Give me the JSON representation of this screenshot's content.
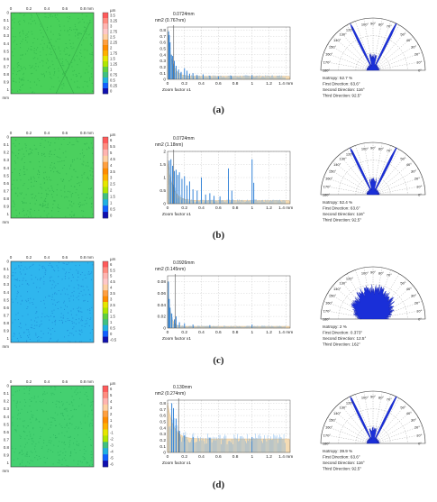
{
  "panels": [
    {
      "label": "(a)",
      "map": {
        "unit": "µm",
        "fill": "#49d15a",
        "speckle": "#2fb44a",
        "x_ticks": [
          "0",
          "0.2",
          "0.4",
          "0.6",
          "0.8",
          "mm"
        ],
        "y_ticks": [
          "0",
          "0.1",
          "0.2",
          "0.3",
          "0.4",
          "0.5",
          "0.6",
          "0.7",
          "0.8",
          "0.9",
          "1",
          "mm"
        ],
        "scale": [
          "3.5",
          "3.25",
          "3",
          "2.75",
          "2.5",
          "2.25",
          "2",
          "1.75",
          "1.5",
          "1.25",
          "1",
          "0.75",
          "0.5",
          "0.25",
          "0"
        ]
      },
      "spectrum": {
        "label1": "0.0724mm",
        "label2": "nm2 (0.767nm)",
        "yticks": [
          "0.8",
          "0.7",
          "0.6",
          "0.5",
          "0.4",
          "0.3",
          "0.2",
          "0.1",
          "0"
        ],
        "ymax": 0.85,
        "baseline": 0.05,
        "marker": 0.0724,
        "xticks": [
          "0",
          "0.2",
          "0.4",
          "0.6",
          "0.8",
          "1",
          "1.2",
          "1.4 mm"
        ],
        "zoom": "Zoom factor x1",
        "peaks": [
          [
            0.012,
            0.78
          ],
          [
            0.02,
            0.72
          ],
          [
            0.03,
            0.6
          ],
          [
            0.045,
            0.4
          ],
          [
            0.06,
            0.38
          ],
          [
            0.08,
            0.3
          ],
          [
            0.1,
            0.22
          ],
          [
            0.13,
            0.16
          ],
          [
            0.16,
            0.12
          ],
          [
            0.2,
            0.18
          ],
          [
            0.23,
            0.14
          ],
          [
            0.26,
            0.09
          ],
          [
            0.3,
            0.1
          ],
          [
            0.35,
            0.07
          ],
          [
            0.42,
            0.08
          ],
          [
            0.5,
            0.06
          ],
          [
            0.6,
            0.05
          ],
          [
            0.75,
            0.06
          ],
          [
            1.0,
            0.07
          ]
        ],
        "decay": 0.05
      },
      "rose": {
        "angle_labels": [
          "130°",
          "120°",
          "100°",
          "90°",
          "80°",
          "70°",
          "50°",
          "140°",
          "40°",
          "150°",
          "30°",
          "160°",
          "20°",
          "170°",
          "10°",
          "180°",
          "0°"
        ],
        "spread": 0.06,
        "reach": 0.98,
        "main_dir": 63.6,
        "second_dir": 116,
        "stats": [
          "Isotropy: 52.7 %",
          "First Direction: 63.6°",
          "Second Direction: 116°",
          "Third Direction: 92.5°"
        ]
      }
    },
    {
      "label": "(b)",
      "map": {
        "unit": "µm",
        "fill": "#4bd05e",
        "speckle": "#2faf4d",
        "x_ticks": [
          "0",
          "0.2",
          "0.4",
          "0.6",
          "0.8",
          "mm"
        ],
        "y_ticks": [
          "0",
          "0.1",
          "0.2",
          "0.3",
          "0.4",
          "0.5",
          "0.6",
          "0.7",
          "0.8",
          "0.9",
          "1",
          "mm"
        ],
        "scale": [
          "6",
          "5.5",
          "5",
          "4.5",
          "4",
          "3.5",
          "3",
          "2.5",
          "2",
          "1.5",
          "1",
          "0.5",
          "0"
        ]
      },
      "spectrum": {
        "label1": "0.0724mm",
        "label2": "nm2 (1.18nm)",
        "yticks": [
          "2",
          "1.5",
          "1",
          "0.5",
          "0"
        ],
        "ymax": 2.0,
        "baseline": 0.12,
        "marker": 0.0724,
        "xticks": [
          "0",
          "0.2",
          "0.4",
          "0.6",
          "0.8",
          "1",
          "1.2",
          "1.4 mm"
        ],
        "zoom": "Zoom factor x1",
        "peaks": [
          [
            0.02,
            1.65
          ],
          [
            0.04,
            1.7
          ],
          [
            0.06,
            1.45
          ],
          [
            0.08,
            1.25
          ],
          [
            0.1,
            1.3
          ],
          [
            0.12,
            1.1
          ],
          [
            0.14,
            1.2
          ],
          [
            0.17,
            0.95
          ],
          [
            0.2,
            1.05
          ],
          [
            0.23,
            0.7
          ],
          [
            0.26,
            0.85
          ],
          [
            0.3,
            0.55
          ],
          [
            0.35,
            0.5
          ],
          [
            0.4,
            1.0
          ],
          [
            0.45,
            0.35
          ],
          [
            0.5,
            0.4
          ],
          [
            0.55,
            0.3
          ],
          [
            0.62,
            0.28
          ],
          [
            0.72,
            1.35
          ],
          [
            0.76,
            0.5
          ],
          [
            1.0,
            1.7
          ],
          [
            1.02,
            0.8
          ]
        ],
        "decay": 0.06
      },
      "rose": {
        "angle_labels": [
          "130°",
          "120°",
          "100°",
          "90°",
          "80°",
          "70°",
          "50°",
          "140°",
          "40°",
          "150°",
          "30°",
          "160°",
          "20°",
          "170°",
          "10°",
          "180°",
          "0°"
        ],
        "spread": 0.06,
        "reach": 0.98,
        "main_dir": 63.6,
        "second_dir": 116,
        "stats": [
          "Isotropy: 52.4 %",
          "First Direction: 63.6°",
          "Second Direction: 116°",
          "Third Direction: 92.5°"
        ]
      }
    },
    {
      "label": "(c)",
      "map": {
        "unit": "µm",
        "fill": "#2fb6ee",
        "speckle": "#1e8ad6",
        "x_ticks": [
          "0",
          "0.2",
          "0.4",
          "0.6",
          "0.8",
          "mm"
        ],
        "y_ticks": [
          "0",
          "0.1",
          "0.2",
          "0.3",
          "0.4",
          "0.5",
          "0.6",
          "0.7",
          "0.8",
          "0.9",
          "1",
          "mm"
        ],
        "scale": [
          "6",
          "5.5",
          "5",
          "4.5",
          "4",
          "3.5",
          "3",
          "2.5",
          "2",
          "1.5",
          "1",
          "0.5",
          "0",
          "-0.5"
        ]
      },
      "spectrum": {
        "label1": "0.0926mm",
        "label2": "nm2 (0.145nm)",
        "yticks": [
          "0.08",
          "0.06",
          "0.04",
          "0.02",
          "0"
        ],
        "ymax": 0.09,
        "baseline": 0.003,
        "marker": 0.0926,
        "xticks": [
          "0",
          "0.2",
          "0.4",
          "0.6",
          "0.8",
          "1",
          "1.2",
          "1.4 mm"
        ],
        "zoom": "Zoom factor x1",
        "peaks": [
          [
            0.01,
            0.08
          ],
          [
            0.02,
            0.05
          ],
          [
            0.03,
            0.035
          ],
          [
            0.05,
            0.025
          ],
          [
            0.08,
            0.015
          ],
          [
            0.1,
            0.02
          ],
          [
            0.14,
            0.01
          ],
          [
            0.2,
            0.008
          ],
          [
            0.3,
            0.006
          ],
          [
            0.5,
            0.005
          ],
          [
            1.0,
            0.006
          ]
        ],
        "decay": 0.03
      },
      "rose": {
        "angle_labels": [
          "130°",
          "120°",
          "100°",
          "90°",
          "80°",
          "70°",
          "50°",
          "140°",
          "40°",
          "150°",
          "30°",
          "160°",
          "20°",
          "170°",
          "10°",
          "180°",
          "0°"
        ],
        "spread": 1.0,
        "reach": 0.62,
        "main_dir": 90,
        "second_dir": 90,
        "stats": [
          "Isotropy: 2 %",
          "First Direction: 0.373°",
          "Second Direction: 12.5°",
          "Third Direction: 162°"
        ]
      }
    },
    {
      "label": "(d)",
      "map": {
        "unit": "µm",
        "fill": "#44d070",
        "speckle": "#2db55e",
        "x_ticks": [
          "0",
          "0.2",
          "0.4",
          "0.6",
          "0.8",
          "mm"
        ],
        "y_ticks": [
          "0",
          "0.1",
          "0.2",
          "0.3",
          "0.4",
          "0.5",
          "0.6",
          "0.7",
          "0.8",
          "0.9",
          "1",
          "mm"
        ],
        "scale": [
          "6",
          "5",
          "4",
          "3",
          "2",
          "1",
          "0",
          "-1",
          "-2",
          "-3",
          "-4",
          "-5",
          "-6"
        ]
      },
      "spectrum": {
        "label1": "0.130mm",
        "label2": "nm2 (0.274nm)",
        "yticks": [
          "0.8",
          "0.7",
          "0.6",
          "0.5",
          "0.4",
          "0.3",
          "0.2",
          "0.1",
          "0"
        ],
        "ymax": 0.85,
        "baseline": 0.22,
        "marker": 0.13,
        "xticks": [
          "0",
          "0.2",
          "0.4",
          "0.6",
          "0.8",
          "1",
          "1.2",
          "1.4 mm"
        ],
        "zoom": "Zoom factor x1",
        "peaks": [
          [
            0.05,
            0.8
          ],
          [
            0.07,
            0.72
          ],
          [
            0.1,
            0.55
          ],
          [
            0.14,
            0.35
          ],
          [
            0.2,
            0.28
          ],
          [
            0.3,
            0.25
          ],
          [
            0.5,
            0.24
          ],
          [
            1.0,
            0.25
          ]
        ],
        "decay": 0.07
      },
      "rose": {
        "angle_labels": [
          "130°",
          "120°",
          "100°",
          "90°",
          "80°",
          "70°",
          "50°",
          "140°",
          "40°",
          "150°",
          "30°",
          "160°",
          "20°",
          "170°",
          "10°",
          "180°",
          "0°"
        ],
        "spread": 0.06,
        "reach": 0.98,
        "main_dir": 63.6,
        "second_dir": 116,
        "stats": [
          "Isotropy: 39.9 %",
          "First Direction: 63.6°",
          "Second Direction: 116°",
          "Third Direction: 92.5°"
        ]
      }
    }
  ]
}
